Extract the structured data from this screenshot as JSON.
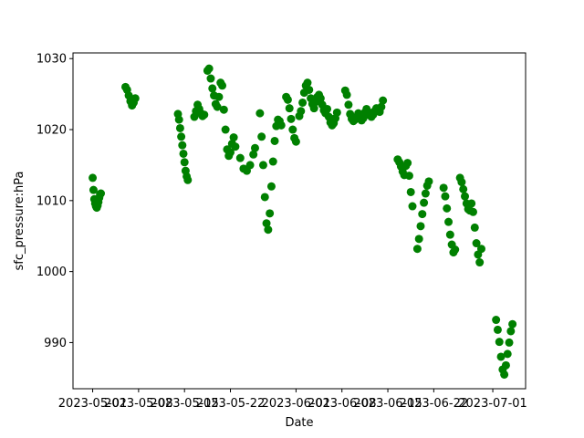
{
  "chart_data": {
    "type": "scatter",
    "title": "",
    "xlabel": "Date",
    "ylabel": "sfc_pressure:hPa",
    "xlim": [
      "2023-04-28",
      "2023-07-06"
    ],
    "ylim": [
      983.5,
      1030.8
    ],
    "grid": false,
    "legend": "none",
    "x_ticks": [
      "2023-05-01",
      "2023-05-08",
      "2023-05-15",
      "2023-05-22",
      "2023-06-01",
      "2023-06-08",
      "2023-06-15",
      "2023-06-22",
      "2023-07-01"
    ],
    "x_tick_labels": [
      "2023-05-01",
      "2023-05-08",
      "2023-05-15",
      "2023-05-22",
      "2023-06-01",
      "2023-06-08",
      "2023-06-15",
      "2023-06-22",
      "2023-07-01"
    ],
    "y_ticks": [
      990,
      1000,
      1010,
      1020,
      1030
    ],
    "y_tick_labels": [
      "990",
      "1000",
      "1010",
      "1020",
      "1030"
    ],
    "series": [
      {
        "color": "#008000",
        "marker": "circle",
        "x": [
          "2023-05-01 00:00",
          "2023-05-01 03:00",
          "2023-05-01 06:00",
          "2023-05-01 09:00",
          "2023-05-01 12:00",
          "2023-05-01 15:00",
          "2023-05-01 18:00",
          "2023-05-01 21:00",
          "2023-05-02 00:00",
          "2023-05-02 03:00",
          "2023-05-02 06:00",
          "2023-05-06 00:00",
          "2023-05-06 06:00",
          "2023-05-06 12:00",
          "2023-05-06 18:00",
          "2023-05-07 00:00",
          "2023-05-07 06:00",
          "2023-05-07 12:00",
          "2023-05-14 00:00",
          "2023-05-14 04:00",
          "2023-05-14 08:00",
          "2023-05-14 12:00",
          "2023-05-14 16:00",
          "2023-05-14 20:00",
          "2023-05-15 00:00",
          "2023-05-15 04:00",
          "2023-05-15 08:00",
          "2023-05-15 12:00",
          "2023-05-16 12:00",
          "2023-05-16 18:00",
          "2023-05-17 00:00",
          "2023-05-17 06:00",
          "2023-05-17 12:00",
          "2023-05-17 18:00",
          "2023-05-18 00:00",
          "2023-05-18 12:00",
          "2023-05-18 18:00",
          "2023-05-19 00:00",
          "2023-05-19 06:00",
          "2023-05-19 12:00",
          "2023-05-19 18:00",
          "2023-05-20 00:00",
          "2023-05-20 06:00",
          "2023-05-20 12:00",
          "2023-05-20 18:00",
          "2023-05-21 00:00",
          "2023-05-21 06:00",
          "2023-05-21 12:00",
          "2023-05-21 18:00",
          "2023-05-22 00:00",
          "2023-05-22 06:00",
          "2023-05-22 12:00",
          "2023-05-22 18:00",
          "2023-05-23 12:00",
          "2023-05-24 00:00",
          "2023-05-24 12:00",
          "2023-05-25 00:00",
          "2023-05-25 12:00",
          "2023-05-25 18:00",
          "2023-05-26 12:00",
          "2023-05-26 18:00",
          "2023-05-27 00:00",
          "2023-05-27 06:00",
          "2023-05-27 12:00",
          "2023-05-27 18:00",
          "2023-05-28 00:00",
          "2023-05-28 06:00",
          "2023-05-28 12:00",
          "2023-05-28 18:00",
          "2023-05-29 00:00",
          "2023-05-29 06:00",
          "2023-05-29 12:00",
          "2023-05-29 18:00",
          "2023-05-30 12:00",
          "2023-05-30 18:00",
          "2023-05-31 00:00",
          "2023-05-31 06:00",
          "2023-05-31 12:00",
          "2023-05-31 18:00",
          "2023-06-01 00:00",
          "2023-06-01 12:00",
          "2023-06-01 18:00",
          "2023-06-02 00:00",
          "2023-06-02 06:00",
          "2023-06-02 12:00",
          "2023-06-02 18:00",
          "2023-06-03 00:00",
          "2023-06-03 06:00",
          "2023-06-03 12:00",
          "2023-06-03 18:00",
          "2023-06-04 00:00",
          "2023-06-04 06:00",
          "2023-06-04 12:00",
          "2023-06-04 18:00",
          "2023-06-05 00:00",
          "2023-06-05 06:00",
          "2023-06-05 12:00",
          "2023-06-05 18:00",
          "2023-06-06 00:00",
          "2023-06-06 06:00",
          "2023-06-06 12:00",
          "2023-06-06 18:00",
          "2023-06-07 00:00",
          "2023-06-07 06:00",
          "2023-06-08 12:00",
          "2023-06-08 18:00",
          "2023-06-09 00:00",
          "2023-06-09 06:00",
          "2023-06-09 12:00",
          "2023-06-09 18:00",
          "2023-06-10 00:00",
          "2023-06-10 06:00",
          "2023-06-10 12:00",
          "2023-06-10 18:00",
          "2023-06-11 00:00",
          "2023-06-11 06:00",
          "2023-06-11 12:00",
          "2023-06-11 18:00",
          "2023-06-12 00:00",
          "2023-06-12 06:00",
          "2023-06-12 12:00",
          "2023-06-12 18:00",
          "2023-06-13 00:00",
          "2023-06-13 06:00",
          "2023-06-13 12:00",
          "2023-06-13 18:00",
          "2023-06-14 00:00",
          "2023-06-14 06:00",
          "2023-06-16 12:00",
          "2023-06-16 18:00",
          "2023-06-17 00:00",
          "2023-06-17 06:00",
          "2023-06-17 12:00",
          "2023-06-17 18:00",
          "2023-06-18 00:00",
          "2023-06-18 06:00",
          "2023-06-18 12:00",
          "2023-06-18 18:00",
          "2023-06-19 12:00",
          "2023-06-19 18:00",
          "2023-06-20 00:00",
          "2023-06-20 06:00",
          "2023-06-20 12:00",
          "2023-06-20 18:00",
          "2023-06-21 00:00",
          "2023-06-21 06:00",
          "2023-06-23 12:00",
          "2023-06-23 18:00",
          "2023-06-24 00:00",
          "2023-06-24 06:00",
          "2023-06-24 12:00",
          "2023-06-24 18:00",
          "2023-06-25 00:00",
          "2023-06-25 06:00",
          "2023-06-26 00:00",
          "2023-06-26 06:00",
          "2023-06-26 12:00",
          "2023-06-26 18:00",
          "2023-06-27 00:00",
          "2023-06-27 06:00",
          "2023-06-27 12:00",
          "2023-06-27 18:00",
          "2023-06-28 00:00",
          "2023-06-28 06:00",
          "2023-06-28 12:00",
          "2023-06-28 18:00",
          "2023-06-29 00:00",
          "2023-06-29 06:00",
          "2023-07-01 12:00",
          "2023-07-01 18:00",
          "2023-07-02 00:00",
          "2023-07-02 06:00",
          "2023-07-02 12:00",
          "2023-07-02 18:00",
          "2023-07-03 00:00",
          "2023-07-03 06:00",
          "2023-07-03 12:00",
          "2023-07-03 18:00",
          "2023-07-04 00:00"
        ],
        "y": [
          1013.2,
          1011.5,
          1010.2,
          1009.6,
          1009.2,
          1009.0,
          1009.3,
          1009.8,
          1010.4,
          1010.9,
          1011.0,
          1026.0,
          1025.6,
          1024.8,
          1024.0,
          1023.4,
          1023.8,
          1024.4,
          1022.2,
          1021.4,
          1020.2,
          1019.0,
          1017.8,
          1016.6,
          1015.4,
          1014.2,
          1013.4,
          1012.9,
          1021.8,
          1022.6,
          1023.5,
          1022.9,
          1022.3,
          1021.9,
          1022.1,
          1028.3,
          1028.6,
          1027.2,
          1025.8,
          1024.8,
          1023.6,
          1023.2,
          1024.6,
          1026.6,
          1026.2,
          1022.8,
          1020.0,
          1017.2,
          1016.3,
          1016.8,
          1018.0,
          1018.9,
          1017.6,
          1016.0,
          1014.5,
          1014.2,
          1015.0,
          1016.5,
          1017.4,
          1022.3,
          1019.0,
          1015.0,
          1010.5,
          1006.8,
          1005.9,
          1008.2,
          1012.0,
          1015.5,
          1018.4,
          1020.5,
          1021.4,
          1021.2,
          1020.6,
          1024.6,
          1024.2,
          1023.0,
          1021.5,
          1020.0,
          1018.8,
          1018.3,
          1021.9,
          1022.6,
          1023.8,
          1025.2,
          1026.2,
          1026.6,
          1025.6,
          1024.4,
          1023.6,
          1023.0,
          1023.9,
          1024.6,
          1024.9,
          1024.4,
          1023.5,
          1022.7,
          1022.3,
          1022.9,
          1021.8,
          1021.0,
          1020.6,
          1020.9,
          1021.6,
          1022.4,
          1025.5,
          1024.9,
          1023.5,
          1022.2,
          1021.5,
          1021.2,
          1021.4,
          1021.8,
          1022.3,
          1021.9,
          1021.3,
          1021.6,
          1022.4,
          1022.9,
          1022.5,
          1022.0,
          1021.8,
          1022.1,
          1022.6,
          1023.0,
          1022.8,
          1022.5,
          1023.2,
          1024.1,
          1015.8,
          1015.4,
          1014.8,
          1014.1,
          1013.6,
          1014.9,
          1015.3,
          1013.5,
          1011.2,
          1009.2,
          1003.2,
          1004.6,
          1006.4,
          1008.1,
          1009.7,
          1011.0,
          1012.1,
          1012.7,
          1011.8,
          1010.6,
          1008.9,
          1007.0,
          1005.2,
          1003.8,
          1002.7,
          1003.1,
          1013.2,
          1012.6,
          1011.6,
          1010.6,
          1009.6,
          1008.8,
          1008.6,
          1009.6,
          1008.4,
          1006.2,
          1004.0,
          1002.4,
          1001.3,
          1003.2,
          993.2,
          991.8,
          990.1,
          988.0,
          986.2,
          985.5,
          986.8,
          988.4,
          990.0,
          991.6,
          992.6
        ]
      }
    ]
  }
}
